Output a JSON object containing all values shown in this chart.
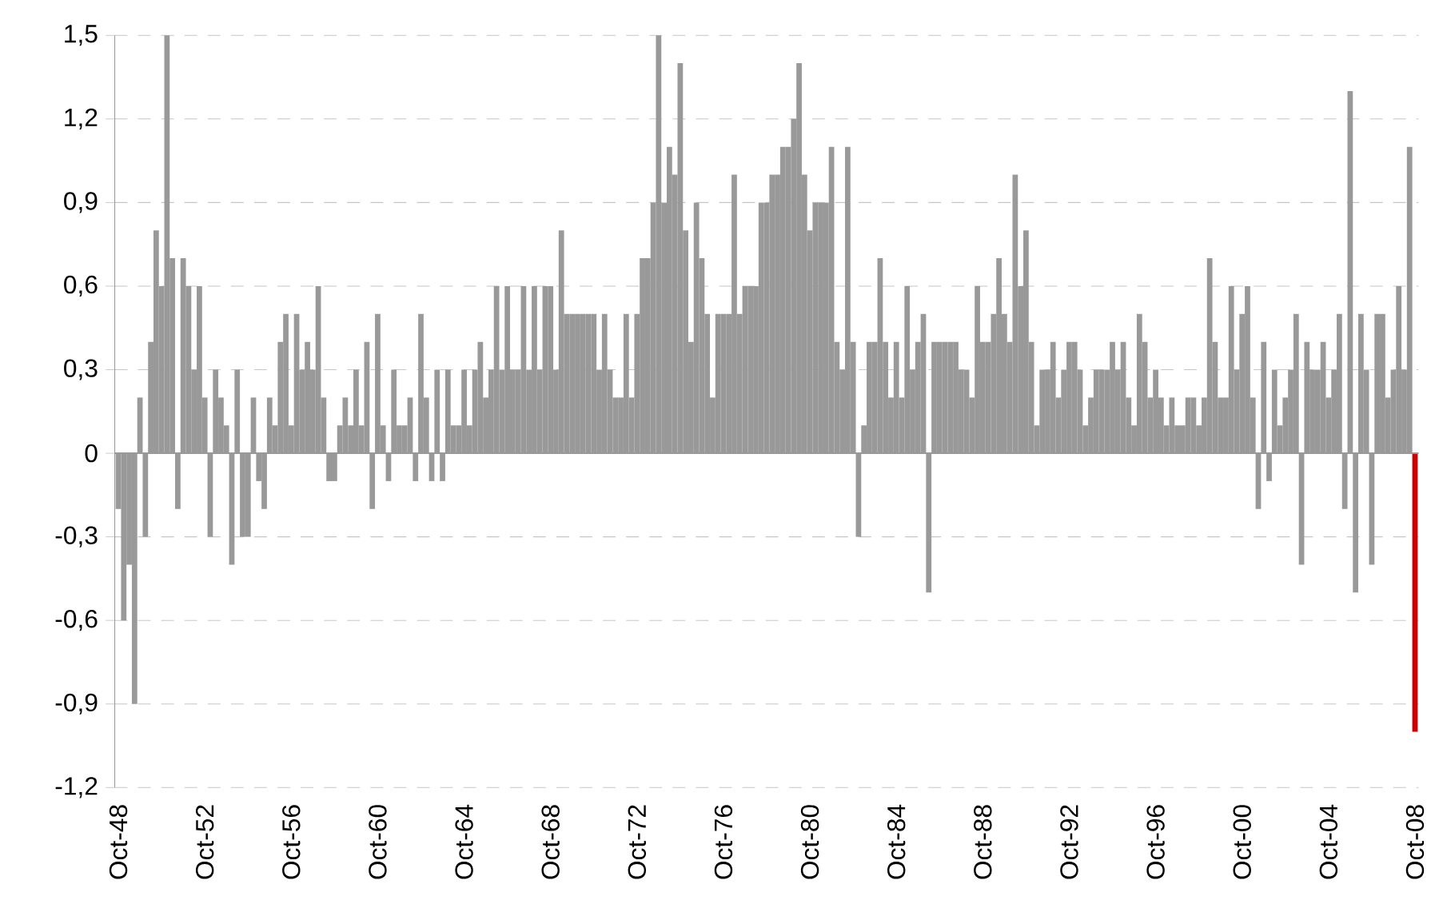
{
  "chart_data": {
    "type": "bar",
    "series": [
      {
        "color": "#999999",
        "x": [
          "1948-10",
          "1949-01",
          "1949-04",
          "1949-07",
          "1949-10",
          "1950-01",
          "1950-04",
          "1950-07",
          "1950-10",
          "1951-01",
          "1951-04",
          "1951-07",
          "1951-10",
          "1952-01",
          "1952-04",
          "1952-07",
          "1952-10",
          "1953-01",
          "1953-04",
          "1953-07",
          "1953-10",
          "1954-01",
          "1954-04",
          "1954-07",
          "1954-10",
          "1955-01",
          "1955-04",
          "1955-07",
          "1955-10",
          "1956-01",
          "1956-04",
          "1956-07",
          "1956-10",
          "1957-01",
          "1957-04",
          "1957-07",
          "1957-10",
          "1958-01",
          "1958-04",
          "1958-07",
          "1958-10",
          "1959-01",
          "1959-04",
          "1959-07",
          "1959-10",
          "1960-01",
          "1960-04",
          "1960-07",
          "1960-10",
          "1961-01",
          "1961-04",
          "1961-07",
          "1961-10",
          "1962-01",
          "1962-04",
          "1962-07",
          "1962-10",
          "1963-01",
          "1963-04",
          "1963-07",
          "1963-10",
          "1964-01",
          "1964-04",
          "1964-07",
          "1964-10",
          "1965-01",
          "1965-04",
          "1965-07",
          "1965-10",
          "1966-01",
          "1966-04",
          "1966-07",
          "1966-10",
          "1967-01",
          "1967-04",
          "1967-07",
          "1967-10",
          "1968-01",
          "1968-04",
          "1968-07",
          "1968-10",
          "1969-01",
          "1969-04",
          "1969-07",
          "1969-10",
          "1970-01",
          "1970-04",
          "1970-07",
          "1970-10",
          "1971-01",
          "1971-04",
          "1971-07",
          "1971-10",
          "1972-01",
          "1972-04",
          "1972-07",
          "1972-10",
          "1973-01",
          "1973-04",
          "1973-07",
          "1973-10",
          "1974-01",
          "1974-04",
          "1974-07",
          "1974-10",
          "1975-01",
          "1975-04",
          "1975-07",
          "1975-10",
          "1976-01",
          "1976-04",
          "1976-07",
          "1976-10",
          "1977-01",
          "1977-04",
          "1977-07",
          "1977-10",
          "1978-01",
          "1978-04",
          "1978-07",
          "1978-10",
          "1979-01",
          "1979-04",
          "1979-07",
          "1979-10",
          "1980-01",
          "1980-04",
          "1980-07",
          "1980-10",
          "1981-01",
          "1981-04",
          "1981-07",
          "1981-10",
          "1982-01",
          "1982-04",
          "1982-07",
          "1982-10",
          "1983-01",
          "1983-04",
          "1983-07",
          "1983-10",
          "1984-01",
          "1984-04",
          "1984-07",
          "1984-10",
          "1985-01",
          "1985-04",
          "1985-07",
          "1985-10",
          "1986-01",
          "1986-04",
          "1986-07",
          "1986-10",
          "1987-01",
          "1987-04",
          "1987-07",
          "1987-10",
          "1988-01",
          "1988-04",
          "1988-07",
          "1988-10",
          "1989-01",
          "1989-04",
          "1989-07",
          "1989-10",
          "1990-01",
          "1990-04",
          "1990-07",
          "1990-10",
          "1991-01",
          "1991-04",
          "1991-07",
          "1991-10",
          "1992-01",
          "1992-04",
          "1992-07",
          "1992-10",
          "1993-01",
          "1993-04",
          "1993-07",
          "1993-10",
          "1994-01",
          "1994-04",
          "1994-07",
          "1994-10",
          "1995-01",
          "1995-04",
          "1995-07",
          "1995-10",
          "1996-01",
          "1996-04",
          "1996-07",
          "1996-10",
          "1997-01",
          "1997-04",
          "1997-07",
          "1997-10",
          "1998-01",
          "1998-04",
          "1998-07",
          "1998-10",
          "1999-01",
          "1999-04",
          "1999-07",
          "1999-10",
          "2000-01",
          "2000-04",
          "2000-07",
          "2000-10",
          "2001-01",
          "2001-04",
          "2001-07",
          "2001-10",
          "2002-01",
          "2002-04",
          "2002-07",
          "2002-10",
          "2003-01",
          "2003-04",
          "2003-07",
          "2003-10",
          "2004-01",
          "2004-04",
          "2004-07",
          "2004-10",
          "2005-01",
          "2005-04",
          "2005-07",
          "2005-10",
          "2006-01",
          "2006-04",
          "2006-07",
          "2006-10",
          "2007-01",
          "2007-04",
          "2007-07",
          "2007-10",
          "2008-01",
          "2008-04",
          "2008-07"
        ],
        "values": [
          -0.2,
          -0.6,
          -0.4,
          -0.9,
          0.2,
          -0.3,
          0.4,
          0.8,
          0.6,
          1.5,
          0.7,
          -0.2,
          0.7,
          0.6,
          0.3,
          0.6,
          0.2,
          -0.3,
          0.3,
          0.2,
          0.1,
          -0.4,
          0.3,
          -0.3,
          -0.3,
          0.2,
          -0.1,
          -0.2,
          0.2,
          0.1,
          0.4,
          0.5,
          0.1,
          0.5,
          0.3,
          0.4,
          0.3,
          0.6,
          0.2,
          -0.1,
          -0.1,
          0.1,
          0.2,
          0.1,
          0.3,
          0.1,
          0.4,
          -0.2,
          0.5,
          0.1,
          -0.1,
          0.3,
          0.1,
          0.1,
          0.2,
          -0.1,
          0.5,
          0.2,
          -0.1,
          0.3,
          -0.1,
          0.3,
          0.1,
          0.1,
          0.3,
          0.1,
          0.3,
          0.4,
          0.2,
          0.3,
          0.6,
          0.3,
          0.6,
          0.3,
          0.3,
          0.6,
          0.3,
          0.6,
          0.3,
          0.6,
          0.6,
          0.3,
          0.8,
          0.5,
          0.5,
          0.5,
          0.5,
          0.5,
          0.5,
          0.3,
          0.5,
          0.3,
          0.2,
          0.2,
          0.5,
          0.2,
          0.5,
          0.7,
          0.7,
          0.9,
          1.5,
          0.9,
          1.1,
          1.0,
          1.4,
          0.8,
          0.4,
          0.9,
          0.7,
          0.5,
          0.2,
          0.5,
          0.5,
          0.5,
          1.0,
          0.5,
          0.6,
          0.6,
          0.6,
          0.9,
          0.9,
          1.0,
          1.0,
          1.1,
          1.1,
          1.2,
          1.4,
          1.0,
          0.8,
          0.9,
          0.9,
          0.9,
          1.1,
          0.4,
          0.3,
          1.1,
          0.4,
          -0.3,
          0.1,
          0.4,
          0.4,
          0.7,
          0.4,
          0.2,
          0.4,
          0.2,
          0.6,
          0.3,
          0.4,
          0.5,
          -0.5,
          0.4,
          0.4,
          0.4,
          0.4,
          0.4,
          0.3,
          0.3,
          0.2,
          0.6,
          0.4,
          0.4,
          0.5,
          0.7,
          0.5,
          0.4,
          1.0,
          0.6,
          0.8,
          0.4,
          0.1,
          0.3,
          0.3,
          0.4,
          0.2,
          0.3,
          0.4,
          0.4,
          0.3,
          0.1,
          0.2,
          0.3,
          0.3,
          0.3,
          0.4,
          0.3,
          0.4,
          0.2,
          0.1,
          0.5,
          0.4,
          0.2,
          0.3,
          0.2,
          0.1,
          0.2,
          0.1,
          0.1,
          0.2,
          0.2,
          0.1,
          0.2,
          0.7,
          0.4,
          0.2,
          0.2,
          0.6,
          0.3,
          0.5,
          0.6,
          0.2,
          -0.2,
          0.4,
          -0.1,
          0.3,
          0.1,
          0.2,
          0.3,
          0.5,
          -0.4,
          0.4,
          0.3,
          0.3,
          0.4,
          0.2,
          0.3,
          0.5,
          -0.2,
          1.3,
          -0.5,
          0.5,
          0.3,
          -0.4,
          0.5,
          0.5,
          0.2,
          0.3,
          0.6,
          0.3,
          1.1
        ]
      },
      {
        "color": "#cc0000",
        "x": [
          "2008-10"
        ],
        "values": [
          -1.0
        ]
      }
    ],
    "xlim": [
      "1948-08",
      "2008-12"
    ],
    "xticks": [
      {
        "value": "1948-10",
        "label": "Oct-48"
      },
      {
        "value": "1952-10",
        "label": "Oct-52"
      },
      {
        "value": "1956-10",
        "label": "Oct-56"
      },
      {
        "value": "1960-10",
        "label": "Oct-60"
      },
      {
        "value": "1964-10",
        "label": "Oct-64"
      },
      {
        "value": "1968-10",
        "label": "Oct-68"
      },
      {
        "value": "1972-10",
        "label": "Oct-72"
      },
      {
        "value": "1976-10",
        "label": "Oct-76"
      },
      {
        "value": "1980-10",
        "label": "Oct-80"
      },
      {
        "value": "1984-10",
        "label": "Oct-84"
      },
      {
        "value": "1988-10",
        "label": "Oct-88"
      },
      {
        "value": "1992-10",
        "label": "Oct-92"
      },
      {
        "value": "1996-10",
        "label": "Oct-96"
      },
      {
        "value": "2000-10",
        "label": "Oct-00"
      },
      {
        "value": "2004-10",
        "label": "Oct-04"
      },
      {
        "value": "2008-10",
        "label": "Oct-08"
      }
    ],
    "ylim": [
      -1.2,
      1.5
    ],
    "yticks": [
      {
        "value": -1.2,
        "label": "-1,2"
      },
      {
        "value": -0.9,
        "label": "-0,9"
      },
      {
        "value": -0.6,
        "label": "-0,6"
      },
      {
        "value": -0.3,
        "label": "-0,3"
      },
      0,
      {
        "value": 0.3,
        "label": "0,3"
      },
      {
        "value": 0.6,
        "label": "0,6"
      },
      {
        "value": 0.9,
        "label": "0,9"
      },
      {
        "value": 1.2,
        "label": "1,2"
      },
      {
        "value": 1.5,
        "label": "1,5"
      }
    ],
    "grid": "y"
  }
}
